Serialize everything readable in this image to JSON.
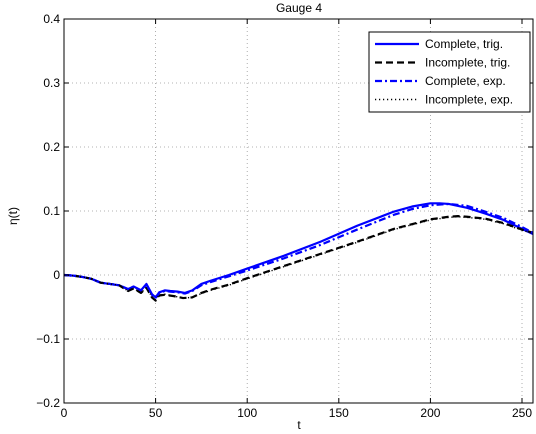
{
  "chart_data": {
    "type": "line",
    "title": "Gauge 4",
    "xlabel": "t",
    "ylabel": "η(t)",
    "xlim": [
      0,
      256
    ],
    "ylim": [
      -0.2,
      0.4
    ],
    "xticks": [
      0,
      50,
      100,
      150,
      200,
      250
    ],
    "yticks": [
      -0.2,
      -0.1,
      0,
      0.1,
      0.2,
      0.3,
      0.4
    ],
    "xtick_labels": [
      "0",
      "50",
      "100",
      "150",
      "200",
      "250"
    ],
    "ytick_labels": [
      "−0.2",
      "−0.1",
      "0",
      "0.1",
      "0.2",
      "0.3",
      "0.4"
    ],
    "grid": true,
    "legend_position": "top-right",
    "series": [
      {
        "name": "Complete, trig.",
        "color": "#0000ff",
        "dash": "solid",
        "x": [
          0,
          5,
          10,
          15,
          20,
          25,
          30,
          35,
          38,
          42,
          45,
          48,
          50,
          52,
          55,
          58,
          62,
          66,
          70,
          75,
          80,
          90,
          100,
          120,
          140,
          160,
          180,
          190,
          200,
          205,
          210,
          220,
          230,
          240,
          250,
          256
        ],
        "y": [
          0,
          -0.001,
          -0.003,
          -0.006,
          -0.012,
          -0.014,
          -0.016,
          -0.022,
          -0.018,
          -0.024,
          -0.014,
          -0.03,
          -0.035,
          -0.027,
          -0.024,
          -0.025,
          -0.026,
          -0.028,
          -0.024,
          -0.014,
          -0.009,
          0.0,
          0.01,
          0.03,
          0.052,
          0.077,
          0.099,
          0.107,
          0.112,
          0.112,
          0.111,
          0.105,
          0.096,
          0.086,
          0.072,
          0.064
        ]
      },
      {
        "name": "Incomplete, trig.",
        "color": "#000000",
        "dash": "dashed",
        "x": [
          0,
          5,
          10,
          15,
          20,
          25,
          30,
          35,
          38,
          42,
          45,
          48,
          50,
          52,
          55,
          60,
          65,
          70,
          75,
          80,
          90,
          100,
          120,
          140,
          160,
          180,
          200,
          210,
          215,
          220,
          230,
          240,
          250,
          256
        ],
        "y": [
          0,
          -0.001,
          -0.003,
          -0.006,
          -0.012,
          -0.014,
          -0.016,
          -0.025,
          -0.021,
          -0.028,
          -0.02,
          -0.035,
          -0.04,
          -0.032,
          -0.031,
          -0.033,
          -0.036,
          -0.035,
          -0.028,
          -0.023,
          -0.015,
          -0.005,
          0.014,
          0.033,
          0.052,
          0.072,
          0.087,
          0.091,
          0.092,
          0.091,
          0.088,
          0.081,
          0.071,
          0.066
        ]
      },
      {
        "name": "Complete, exp.",
        "color": "#0000ff",
        "dash": "dashdot",
        "x": [
          0,
          5,
          10,
          15,
          20,
          25,
          30,
          35,
          38,
          42,
          45,
          48,
          50,
          52,
          55,
          58,
          62,
          66,
          70,
          75,
          80,
          90,
          100,
          120,
          140,
          160,
          180,
          190,
          200,
          210,
          220,
          230,
          240,
          250,
          256
        ],
        "y": [
          0,
          -0.001,
          -0.003,
          -0.006,
          -0.012,
          -0.014,
          -0.016,
          -0.022,
          -0.018,
          -0.024,
          -0.015,
          -0.031,
          -0.036,
          -0.028,
          -0.025,
          -0.026,
          -0.027,
          -0.029,
          -0.025,
          -0.016,
          -0.011,
          -0.002,
          0.007,
          0.026,
          0.047,
          0.071,
          0.094,
          0.103,
          0.109,
          0.111,
          0.108,
          0.099,
          0.089,
          0.075,
          0.066
        ]
      },
      {
        "name": "Incomplete, exp.",
        "color": "#000000",
        "dash": "dotted",
        "x": [
          0,
          5,
          10,
          15,
          20,
          25,
          30,
          35,
          38,
          42,
          45,
          48,
          50,
          52,
          55,
          60,
          65,
          70,
          75,
          80,
          90,
          100,
          120,
          140,
          160,
          180,
          200,
          210,
          215,
          220,
          230,
          240,
          250,
          256
        ],
        "y": [
          0,
          -0.001,
          -0.003,
          -0.006,
          -0.012,
          -0.014,
          -0.016,
          -0.025,
          -0.021,
          -0.028,
          -0.02,
          -0.034,
          -0.039,
          -0.031,
          -0.03,
          -0.033,
          -0.036,
          -0.035,
          -0.029,
          -0.024,
          -0.016,
          -0.006,
          0.013,
          0.032,
          0.051,
          0.071,
          0.086,
          0.09,
          0.091,
          0.09,
          0.087,
          0.08,
          0.07,
          0.065
        ]
      }
    ]
  }
}
